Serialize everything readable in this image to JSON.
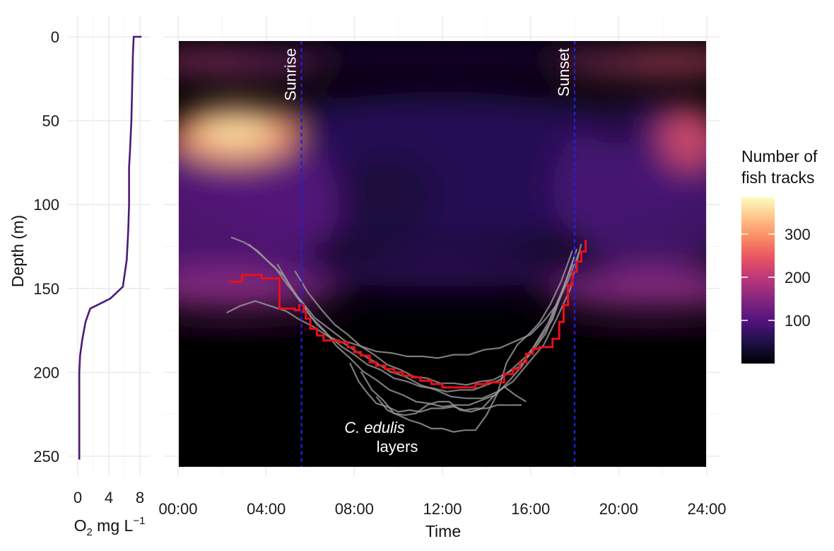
{
  "chart_data": [
    {
      "type": "line",
      "xlabel": "O",
      "xlabel_sub": "2",
      "xlabel_rest": " mg L",
      "xlabel_sup": "−1",
      "ylabel": "Depth (m)",
      "xlim": [
        0,
        8.5
      ],
      "ylim": [
        0,
        255
      ],
      "x_ticks": [
        "0",
        "4",
        "8"
      ],
      "x_tick_values": [
        0,
        4,
        8
      ],
      "y_ticks": [
        "0",
        "50",
        "100",
        "150",
        "200",
        "250"
      ],
      "y_tick_values": [
        0,
        50,
        100,
        150,
        200,
        250
      ],
      "y_reversed": true,
      "line_color": "#4b1a78",
      "series": [
        {
          "x": [
            8.2,
            7.2,
            7.1,
            7.0,
            6.9,
            6.8,
            6.7,
            6.6,
            6.6,
            6.5,
            6.3,
            5.8,
            4.2,
            1.6,
            1.0,
            0.6,
            0.3,
            0.2,
            0.2
          ],
          "y": [
            0,
            0,
            10,
            30,
            50,
            60,
            70,
            78,
            100,
            115,
            133,
            149,
            156,
            162,
            170,
            180,
            190,
            200,
            252
          ]
        }
      ]
    },
    {
      "type": "heatmap",
      "xlabel": "Time",
      "ylabel": "",
      "xlim": [
        0,
        24
      ],
      "ylim": [
        0,
        255
      ],
      "x_ticks": [
        "00:00",
        "04:00",
        "08:00",
        "12:00",
        "16:00",
        "20:00",
        "24:00"
      ],
      "x_tick_values": [
        0,
        4,
        8,
        12,
        16,
        20,
        24
      ],
      "y_reversed": true,
      "colorbar": {
        "title_line1": "Number of",
        "title_line2": "fish tracks",
        "ticks": [
          "100",
          "200",
          "300"
        ],
        "tick_values": [
          100,
          200,
          300
        ],
        "range": [
          0,
          385
        ],
        "colors": [
          "#000004",
          "#1c1044",
          "#4f127b",
          "#812581",
          "#b5367a",
          "#e55064",
          "#fb8761",
          "#fec287",
          "#fcfdbf"
        ]
      },
      "annotations": {
        "sunrise": {
          "label": "Sunrise",
          "time": 5.6
        },
        "sunset": {
          "label": "Sunset",
          "time": 18.0
        },
        "layers_italic": "C. edulis",
        "layers_rest": "layers"
      },
      "vline_color": "#1f1fe0",
      "red_line_color": "#e8101a",
      "gray_color": "#9a9a9a",
      "red_track": {
        "time": [
          2.3,
          2.9,
          2.9,
          3.8,
          3.8,
          4.6,
          4.6,
          5.3,
          5.5,
          5.7,
          5.8,
          6.0,
          6.3,
          6.6,
          6.9,
          7.3,
          7.7,
          8.0,
          8.3,
          8.7,
          9.0,
          9.4,
          9.8,
          10.2,
          10.6,
          11.0,
          11.5,
          12.0,
          12.5,
          13.0,
          13.5,
          14.0,
          14.5,
          14.8,
          15.2,
          15.5,
          15.8,
          16.1,
          16.4,
          16.7,
          17.0,
          17.3,
          17.5,
          17.7,
          17.9,
          18.1,
          18.3,
          18.5,
          18.5
        ],
        "depth": [
          146,
          146,
          142,
          142,
          144,
          144,
          162,
          163,
          160,
          164,
          168,
          174,
          178,
          181,
          181,
          182,
          185,
          188,
          190,
          194,
          196,
          198,
          200,
          202,
          203,
          205,
          207,
          209,
          209,
          209,
          207,
          206,
          206,
          201,
          198,
          194,
          189,
          186,
          185,
          185,
          180,
          170,
          160,
          148,
          140,
          134,
          128,
          124,
          121
        ]
      },
      "gray_tracks": [
        {
          "time": [
            2.4,
            3.0,
            3.6,
            4.2,
            4.8,
            5.3,
            5.8,
            6.3,
            6.8,
            7.4,
            8.0,
            8.6,
            9.2,
            9.8,
            10.4,
            11.0,
            11.6,
            12.2,
            12.8,
            13.4,
            14.0,
            14.6,
            15.2,
            15.8,
            16.4,
            17.0,
            17.5,
            18.0
          ],
          "depth": [
            120,
            122,
            128,
            135,
            143,
            153,
            163,
            171,
            178,
            184,
            190,
            195,
            199,
            203,
            206,
            208,
            210,
            211,
            211,
            210,
            208,
            204,
            198,
            190,
            181,
            168,
            150,
            130
          ]
        },
        {
          "time": [
            2.2,
            2.8,
            3.5,
            4.2,
            4.9,
            5.5,
            6.1,
            6.8,
            7.5,
            8.2,
            8.9,
            9.6,
            10.3,
            11.0,
            11.7,
            12.4,
            13.1,
            13.8,
            14.5,
            15.2,
            15.9,
            16.6,
            17.2,
            17.8,
            18.3
          ],
          "depth": [
            165,
            160,
            158,
            160,
            164,
            168,
            173,
            178,
            183,
            188,
            194,
            199,
            203,
            207,
            211,
            214,
            216,
            215,
            212,
            205,
            195,
            183,
            168,
            150,
            124
          ]
        },
        {
          "time": [
            3.2,
            3.8,
            4.4,
            5.0,
            5.6,
            6.2,
            6.9,
            7.6,
            8.3,
            9.0,
            9.7,
            10.4,
            11.1,
            11.8,
            12.5,
            13.2,
            13.9,
            14.6,
            15.3,
            16.0,
            16.6,
            17.2,
            17.7,
            18.2
          ],
          "depth": [
            124,
            130,
            138,
            148,
            158,
            167,
            175,
            181,
            185,
            187,
            189,
            190,
            191,
            191,
            190,
            189,
            187,
            185,
            182,
            177,
            170,
            159,
            146,
            128
          ]
        },
        {
          "time": [
            4.5,
            5.0,
            5.5,
            6.0,
            6.6,
            7.2,
            7.8,
            8.4,
            9.0,
            9.6,
            10.2,
            10.8,
            11.4,
            12.0,
            12.6,
            13.2,
            13.8,
            14.4,
            15.0,
            15.6,
            16.2,
            16.8,
            17.4,
            17.9
          ],
          "depth": [
            136,
            146,
            157,
            166,
            175,
            184,
            192,
            199,
            205,
            210,
            214,
            217,
            219,
            220,
            220,
            219,
            217,
            213,
            206,
            196,
            184,
            170,
            153,
            135
          ]
        },
        {
          "time": [
            7.8,
            8.2,
            8.6,
            9.0,
            9.5,
            10.0,
            10.5,
            11.0,
            11.5,
            12.0,
            12.5,
            13.0,
            13.5,
            14.0,
            14.5,
            15.0,
            15.6
          ],
          "depth": [
            195,
            205,
            213,
            218,
            221,
            223,
            223,
            223,
            222,
            221,
            221,
            222,
            222,
            221,
            220,
            219,
            220
          ]
        },
        {
          "time": [
            8.3,
            8.8,
            9.3,
            9.8,
            10.3,
            10.8,
            11.3,
            11.8,
            12.3,
            12.8,
            13.3,
            13.8,
            14.3,
            14.8,
            15.3,
            15.8
          ],
          "depth": [
            200,
            210,
            217,
            224,
            226,
            224,
            220,
            217,
            218,
            222,
            224,
            221,
            215,
            208,
            214,
            217
          ]
        },
        {
          "time": [
            9.0,
            9.5,
            10.0,
            10.5,
            11.0,
            11.5,
            12.0,
            12.5,
            13.0,
            13.5,
            14.0,
            14.5,
            14.9,
            15.4,
            15.9,
            16.4,
            16.9,
            17.4,
            17.9
          ],
          "depth": [
            215,
            222,
            226,
            228,
            231,
            233,
            234,
            235,
            235,
            234,
            226,
            212,
            195,
            183,
            178,
            170,
            160,
            145,
            128
          ]
        },
        {
          "time": [
            5.3,
            5.9,
            6.5,
            7.1,
            7.7,
            8.3,
            8.9,
            9.5,
            10.1,
            10.7,
            11.3,
            11.9,
            12.5,
            13.1,
            13.7,
            14.3,
            14.9,
            15.5,
            16.1,
            16.7,
            17.2,
            17.7,
            18.1
          ],
          "depth": [
            140,
            152,
            163,
            171,
            178,
            184,
            190,
            195,
            199,
            202,
            204,
            206,
            207,
            207,
            206,
            204,
            201,
            196,
            188,
            176,
            160,
            142,
            127
          ]
        }
      ]
    }
  ]
}
